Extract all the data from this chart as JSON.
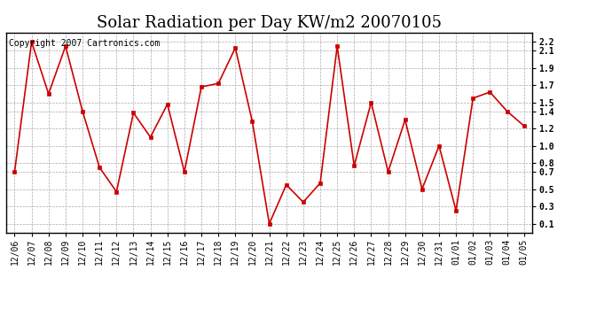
{
  "title": "Solar Radiation per Day KW/m2 20070105",
  "copyright_text": "Copyright 2007 Cartronics.com",
  "labels": [
    "12/06",
    "12/07",
    "12/08",
    "12/09",
    "12/10",
    "12/11",
    "12/12",
    "12/13",
    "12/14",
    "12/15",
    "12/16",
    "12/17",
    "12/18",
    "12/19",
    "12/20",
    "12/21",
    "12/22",
    "12/23",
    "12/24",
    "12/25",
    "12/26",
    "12/27",
    "12/28",
    "12/29",
    "12/30",
    "12/31",
    "01/01",
    "01/02",
    "01/03",
    "01/04",
    "01/05"
  ],
  "values": [
    0.7,
    2.2,
    1.6,
    2.15,
    1.4,
    0.75,
    0.47,
    1.38,
    1.1,
    1.48,
    0.7,
    1.68,
    1.72,
    2.13,
    1.28,
    0.1,
    0.55,
    0.35,
    0.57,
    2.15,
    0.77,
    1.5,
    0.7,
    1.3,
    0.5,
    1.0,
    0.25,
    1.55,
    1.62,
    1.4,
    1.23
  ],
  "line_color": "#cc0000",
  "marker": "s",
  "marker_size": 3,
  "marker_color": "#cc0000",
  "background_color": "#ffffff",
  "grid_color": "#aaaaaa",
  "ylim": [
    0.0,
    2.3
  ],
  "yticks": [
    0.1,
    0.3,
    0.5,
    0.7,
    0.8,
    1.0,
    1.2,
    1.4,
    1.5,
    1.7,
    1.9,
    2.1,
    2.2
  ],
  "ytick_labels": [
    "0.1",
    "0.3",
    "0.5",
    "0.7",
    "0.8",
    "1.0",
    "1.2",
    "1.4",
    "1.5",
    "1.7",
    "1.9",
    "2.1",
    "2.2"
  ],
  "title_fontsize": 13,
  "tick_fontsize": 7,
  "copyright_fontsize": 7
}
